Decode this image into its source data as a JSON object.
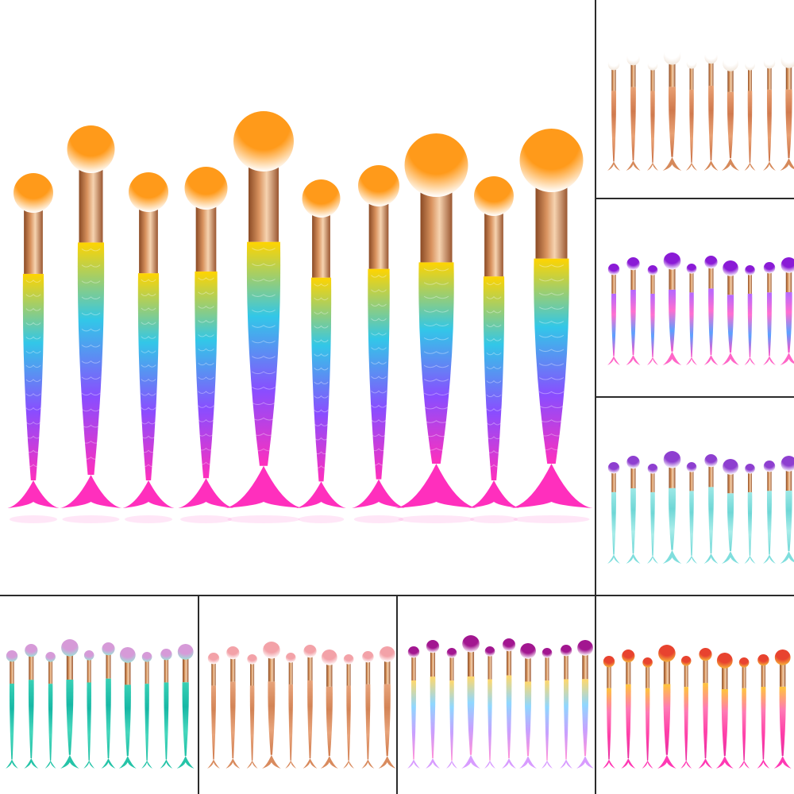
{
  "panels": [
    {
      "name": "main-rainbow-set",
      "count": 10,
      "bristle_tip": "#ff9a1a",
      "bristle_base": "#ffffff",
      "ferrule": "#d9935f",
      "handle": [
        "#ffd400",
        "#32c7e8",
        "#8a4dff",
        "#ff2fbd"
      ],
      "tail": "#ff2fbd",
      "style": "rainbow"
    },
    {
      "name": "rose-gold-white-set",
      "count": 10,
      "bristle_tip": "#ffffff",
      "bristle_base": "#f1e6da",
      "ferrule": "#d8955e",
      "handle": [
        "#e8a073",
        "#d07a4e",
        "#e8a073",
        "#c97045"
      ],
      "tail": "#d6895a",
      "style": "slim"
    },
    {
      "name": "purple-rainbow-set",
      "count": 10,
      "bristle_tip": "#8a1bd6",
      "bristle_base": "#ffffff",
      "ferrule": "#d8955e",
      "handle": [
        "#b469ff",
        "#ff6fd0",
        "#5aa0ff",
        "#ff4fc8"
      ],
      "tail": "#ff66c8",
      "style": "slim"
    },
    {
      "name": "teal-set",
      "count": 10,
      "bristle_tip": "#8e3fd0",
      "bristle_base": "#ffffff",
      "ferrule": "#d8955e",
      "handle": [
        "#9de8e6",
        "#6fd7d6",
        "#a8ece9",
        "#6fd7d6"
      ],
      "tail": "#7fdedd",
      "style": "slim"
    },
    {
      "name": "green-holographic-set",
      "count": 10,
      "bristle_tip": "#d69ad8",
      "bristle_base": "#9fe0d8",
      "ferrule": "#d8955e",
      "handle": [
        "#39d0b5",
        "#17b8a5",
        "#47d7bd",
        "#1ebfa4"
      ],
      "tail": "#25c4a8",
      "style": "slim"
    },
    {
      "name": "rose-gold-pink-set",
      "count": 10,
      "bristle_tip": "#f3a2a8",
      "bristle_base": "#ffffff",
      "ferrule": "#d8955e",
      "handle": [
        "#e7a37a",
        "#d38456",
        "#e7a37a",
        "#cf7a4c"
      ],
      "tail": "#d98b5e",
      "style": "slim"
    },
    {
      "name": "pastel-purple-set",
      "count": 10,
      "bristle_tip": "#a21690",
      "bristle_base": "#ffffff",
      "ferrule": "#d8955e",
      "handle": [
        "#ffd86b",
        "#8fd7ff",
        "#c8a0ff",
        "#ff8fd8"
      ],
      "tail": "#d89cff",
      "style": "slim"
    },
    {
      "name": "pink-gold-set",
      "count": 10,
      "bristle_tip": "#e8432f",
      "bristle_base": "#f6b23b",
      "ferrule": "#d8955e",
      "handle": [
        "#ffc53a",
        "#ff7ab5",
        "#ff3fa9",
        "#e82ea0"
      ],
      "tail": "#ff39b4",
      "style": "slim"
    }
  ]
}
